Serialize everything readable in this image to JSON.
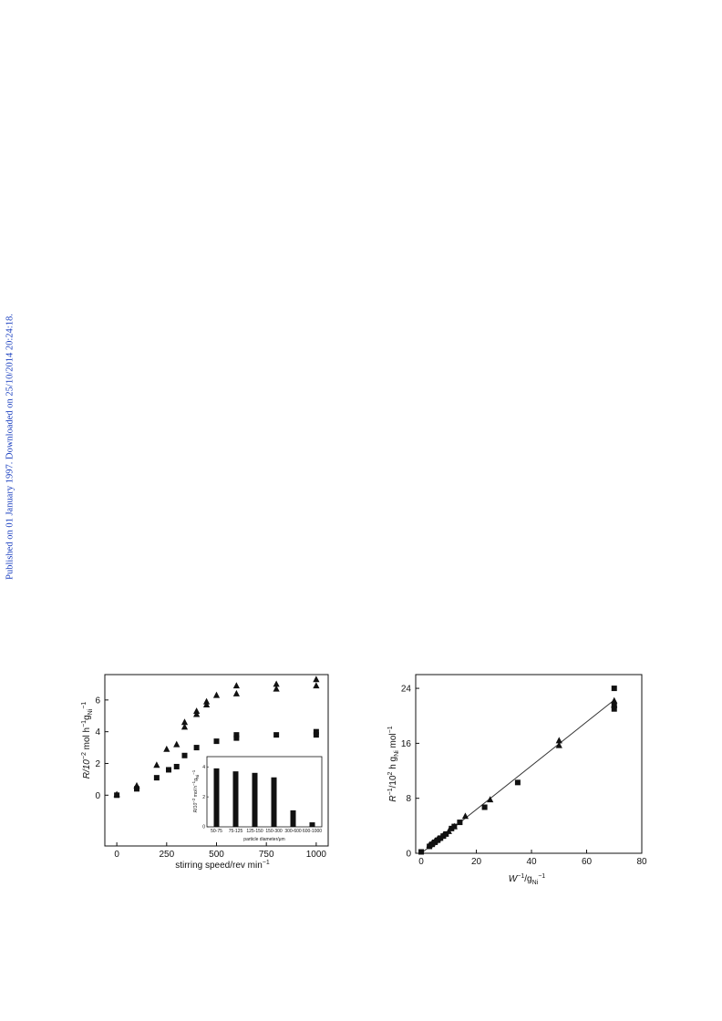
{
  "sidebar_note": "Published on 01 January 1997. Downloaded on 25/10/2014 20:24:18.",
  "colors": {
    "note_text": "#1a3fbf",
    "ink": "#111111"
  },
  "chart_data": [
    {
      "type": "scatter",
      "xlabel": "stirring speed/rev min",
      "xlabel_sup": "−1",
      "ylabel": "R/10",
      "ylabel_rest": "mol h",
      "ylabel_sup1": "−2",
      "ylabel_sup2": "−1",
      "ylabel_g": "g",
      "ylabel_sub": "Ni",
      "ylabel_sup3": "−1",
      "xlim": [
        -60,
        1060
      ],
      "ylim": [
        -3.2,
        7.6
      ],
      "xticks": [
        0,
        250,
        500,
        750,
        1000
      ],
      "yticks": [
        0,
        2,
        4,
        6
      ],
      "series": [
        {
          "marker": "triangle",
          "points": [
            [
              0,
              0.05
            ],
            [
              100,
              0.6
            ],
            [
              200,
              1.9
            ],
            [
              250,
              2.9
            ],
            [
              300,
              3.2
            ],
            [
              340,
              4.6
            ],
            [
              340,
              4.3
            ],
            [
              400,
              5.3
            ],
            [
              400,
              5.1
            ],
            [
              450,
              5.9
            ],
            [
              450,
              5.7
            ],
            [
              500,
              6.3
            ],
            [
              600,
              6.9
            ],
            [
              600,
              6.4
            ],
            [
              800,
              7.0
            ],
            [
              800,
              6.7
            ],
            [
              1000,
              7.3
            ],
            [
              1000,
              6.9
            ]
          ]
        },
        {
          "marker": "square",
          "points": [
            [
              0,
              0.0
            ],
            [
              100,
              0.4
            ],
            [
              200,
              1.1
            ],
            [
              260,
              1.6
            ],
            [
              300,
              1.8
            ],
            [
              340,
              2.5
            ],
            [
              400,
              3.0
            ],
            [
              500,
              3.4
            ],
            [
              600,
              3.8
            ],
            [
              600,
              3.6
            ],
            [
              800,
              3.8
            ],
            [
              1000,
              4.0
            ],
            [
              1000,
              3.8
            ]
          ]
        }
      ],
      "inset": {
        "type": "bar",
        "xlabel": "particle diameter/μm",
        "ylabel": "R/10",
        "ylabel_rest": "mol h",
        "ylabel_sup1": "−2",
        "ylabel_sup2": "−1",
        "ylabel_g": "g",
        "ylabel_sub": "Ni",
        "ylabel_sup3": "−1",
        "categories": [
          "50-75",
          "75-125",
          "125-150",
          "150-300",
          "300-600",
          "600-1000"
        ],
        "values": [
          3.9,
          3.7,
          3.6,
          3.3,
          1.1,
          0.3
        ],
        "ylim": [
          0,
          4.5
        ],
        "yticks": [
          0,
          2,
          4
        ]
      }
    },
    {
      "type": "scatter",
      "xlabel": "W",
      "xlabel_sup": "−1",
      "xlabel_rest": "/g",
      "xlabel_sub": "Ni",
      "xlabel_sup2": "−1",
      "ylabel": "R",
      "ylabel_sup": "−1",
      "ylabel_rest": "/10",
      "ylabel_sup2": "2",
      "ylabel_tail": " h g",
      "ylabel_sub": "Ni",
      "ylabel_end": " mol",
      "ylabel_sup3": "−1",
      "xlim": [
        -2,
        80
      ],
      "ylim": [
        0,
        26
      ],
      "xticks": [
        0,
        20,
        40,
        60,
        80
      ],
      "yticks": [
        0,
        8,
        16,
        24
      ],
      "fit_line": {
        "x": [
          0,
          70
        ],
        "y": [
          0,
          22.3
        ]
      },
      "series": [
        {
          "marker": "triangle",
          "points": [
            [
              3,
              1.2
            ],
            [
              4,
              1.5
            ],
            [
              5,
              1.8
            ],
            [
              6,
              2.1
            ],
            [
              8,
              2.6
            ],
            [
              10,
              3.2
            ],
            [
              12,
              3.9
            ],
            [
              16,
              5.4
            ],
            [
              25,
              7.8
            ],
            [
              50,
              16.4
            ],
            [
              50,
              15.7
            ],
            [
              70,
              21.6
            ],
            [
              70,
              22.2
            ]
          ]
        },
        {
          "marker": "square",
          "points": [
            [
              0,
              0.2
            ],
            [
              3,
              1.0
            ],
            [
              4,
              1.3
            ],
            [
              5,
              1.6
            ],
            [
              6,
              1.9
            ],
            [
              7,
              2.2
            ],
            [
              8,
              2.5
            ],
            [
              9,
              2.8
            ],
            [
              11,
              3.6
            ],
            [
              12,
              3.9
            ],
            [
              14,
              4.5
            ],
            [
              23,
              6.7
            ],
            [
              35,
              10.3
            ],
            [
              70,
              24.0
            ],
            [
              70,
              21.5
            ],
            [
              70,
              21.0
            ]
          ]
        }
      ]
    }
  ]
}
